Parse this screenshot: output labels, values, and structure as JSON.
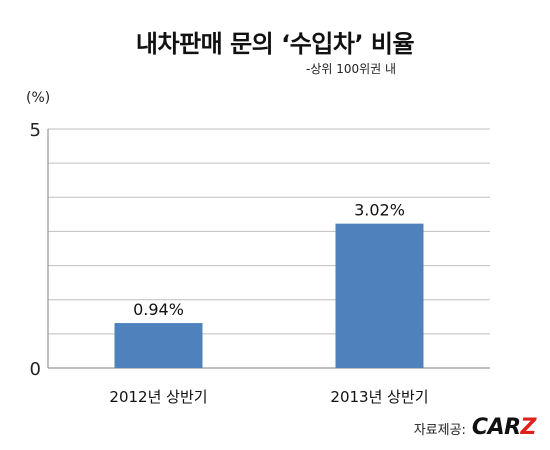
{
  "chart_data": {
    "type": "bar",
    "title": "내차판매 문의 ‘수입차’ 비율",
    "subtitle": "-상위 100위권 내",
    "ylabel": "(%)",
    "categories": [
      "2012년 상반기",
      "2013년 상반기"
    ],
    "values": [
      0.94,
      3.02
    ],
    "data_labels": [
      "0.94%",
      "3.02%"
    ],
    "ylim": [
      0,
      5
    ],
    "y_tick_labels": [
      "0",
      "5"
    ],
    "grid": true,
    "bar_color": "#4f81bd"
  },
  "source": {
    "label": "자료제공:",
    "brand_main": "CAR",
    "brand_accent": "Z",
    "accent_color": "#e0201b"
  }
}
